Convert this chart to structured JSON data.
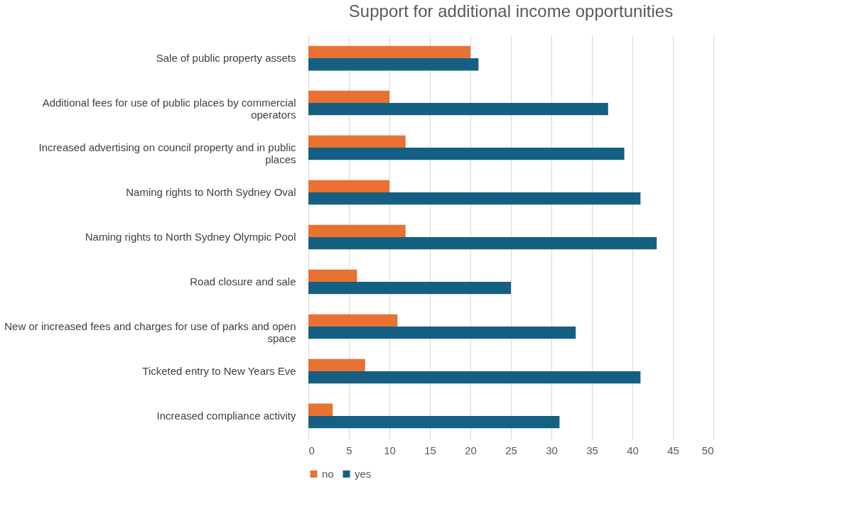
{
  "chart_data": {
    "type": "bar",
    "orientation": "horizontal",
    "title": "Support for additional income opportunities",
    "categories": [
      "Sale of public property assets",
      "Additional fees for use of public places  by commercial operators",
      "Increased advertising on council property and in public places",
      "Naming rights to North Sydney Oval",
      "Naming rights to North Sydney Olympic Pool",
      "Road closure and sale",
      "New or increased fees and charges for use of parks and open space",
      "Ticketed entry to New Years Eve",
      "Increased compliance activity"
    ],
    "series": [
      {
        "name": "no",
        "color": "#e97132",
        "values": [
          20,
          10,
          12,
          10,
          12,
          6,
          11,
          7,
          3
        ]
      },
      {
        "name": "yes",
        "color": "#156082",
        "values": [
          21,
          37,
          39,
          41,
          43,
          25,
          33,
          41,
          31
        ]
      }
    ],
    "xlim": [
      0,
      50
    ],
    "xticks": [
      0,
      5,
      10,
      15,
      20,
      25,
      30,
      35,
      40,
      45,
      50
    ],
    "grid": "x",
    "legend": "bottom"
  }
}
